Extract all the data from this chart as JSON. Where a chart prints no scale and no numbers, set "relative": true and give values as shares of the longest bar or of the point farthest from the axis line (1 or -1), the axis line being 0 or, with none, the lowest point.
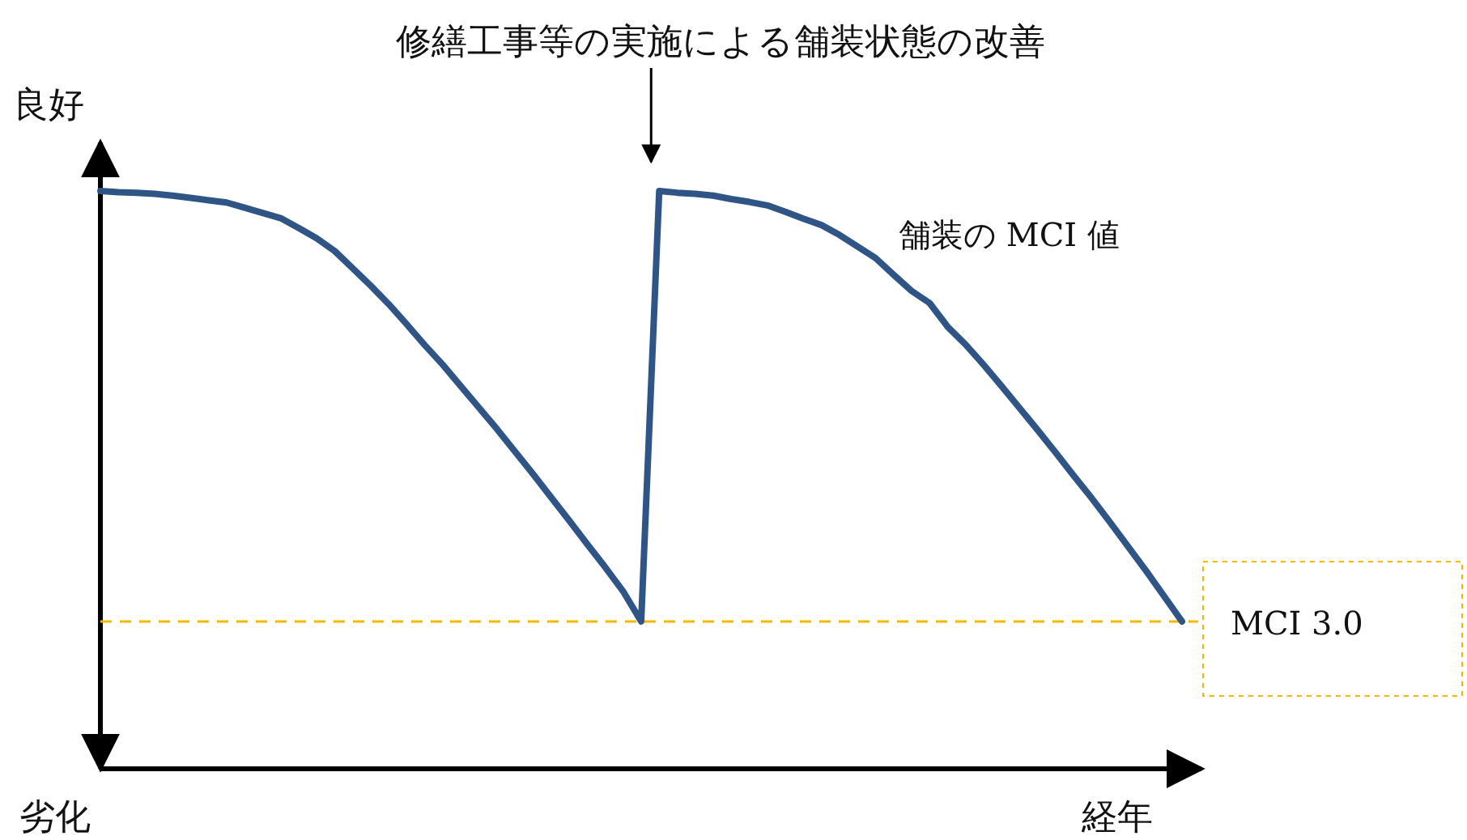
{
  "chart_data": {
    "type": "line",
    "relative": true,
    "xlabel": "経年",
    "ylabel": "良好",
    "annotations": [
      "修繕工事等の実施による舗装状態の改善",
      "劣化"
    ],
    "categories": [
      null,
      null,
      null,
      null,
      null,
      null,
      null,
      null,
      null,
      null,
      null,
      null,
      null,
      null,
      null,
      null,
      null,
      null,
      null,
      null,
      null,
      null,
      null,
      null,
      null,
      null,
      null,
      null,
      null,
      null,
      null,
      null,
      null,
      null,
      null,
      null,
      null,
      null,
      null,
      null,
      null,
      null,
      null,
      null,
      null,
      null,
      null,
      null,
      null,
      null,
      null,
      null,
      null,
      null,
      null,
      null,
      null,
      null,
      null,
      null,
      null
    ],
    "series": [
      {
        "name": "舗装の MCI 値",
        "color": "#2f5587",
        "values": [
          1.0,
          0.998,
          0.997,
          0.995,
          0.992,
          0.988,
          0.984,
          0.98,
          0.971,
          0.962,
          0.953,
          0.936,
          0.918,
          0.896,
          0.866,
          0.836,
          0.804,
          0.769,
          0.733,
          0.699,
          0.662,
          0.625,
          0.588,
          0.549,
          0.51,
          0.47,
          0.43,
          0.389,
          0.349,
          0.307,
          0.255,
          1.0,
          0.997,
          0.995,
          0.992,
          0.986,
          0.981,
          0.975,
          0.964,
          0.952,
          0.941,
          0.924,
          0.904,
          0.884,
          0.855,
          0.827,
          0.806,
          0.765,
          0.734,
          0.699,
          0.662,
          0.624,
          0.586,
          0.547,
          0.507,
          0.468,
          0.427,
          0.385,
          0.343,
          0.299,
          0.255
        ]
      }
    ],
    "ref_lines": [
      {
        "axis": "y",
        "value": 0.255,
        "label": "MCI 3.0",
        "color": "#f5b800",
        "line_style": "dashed"
      }
    ],
    "legend": false,
    "marker": "none",
    "line_style": "solid"
  }
}
